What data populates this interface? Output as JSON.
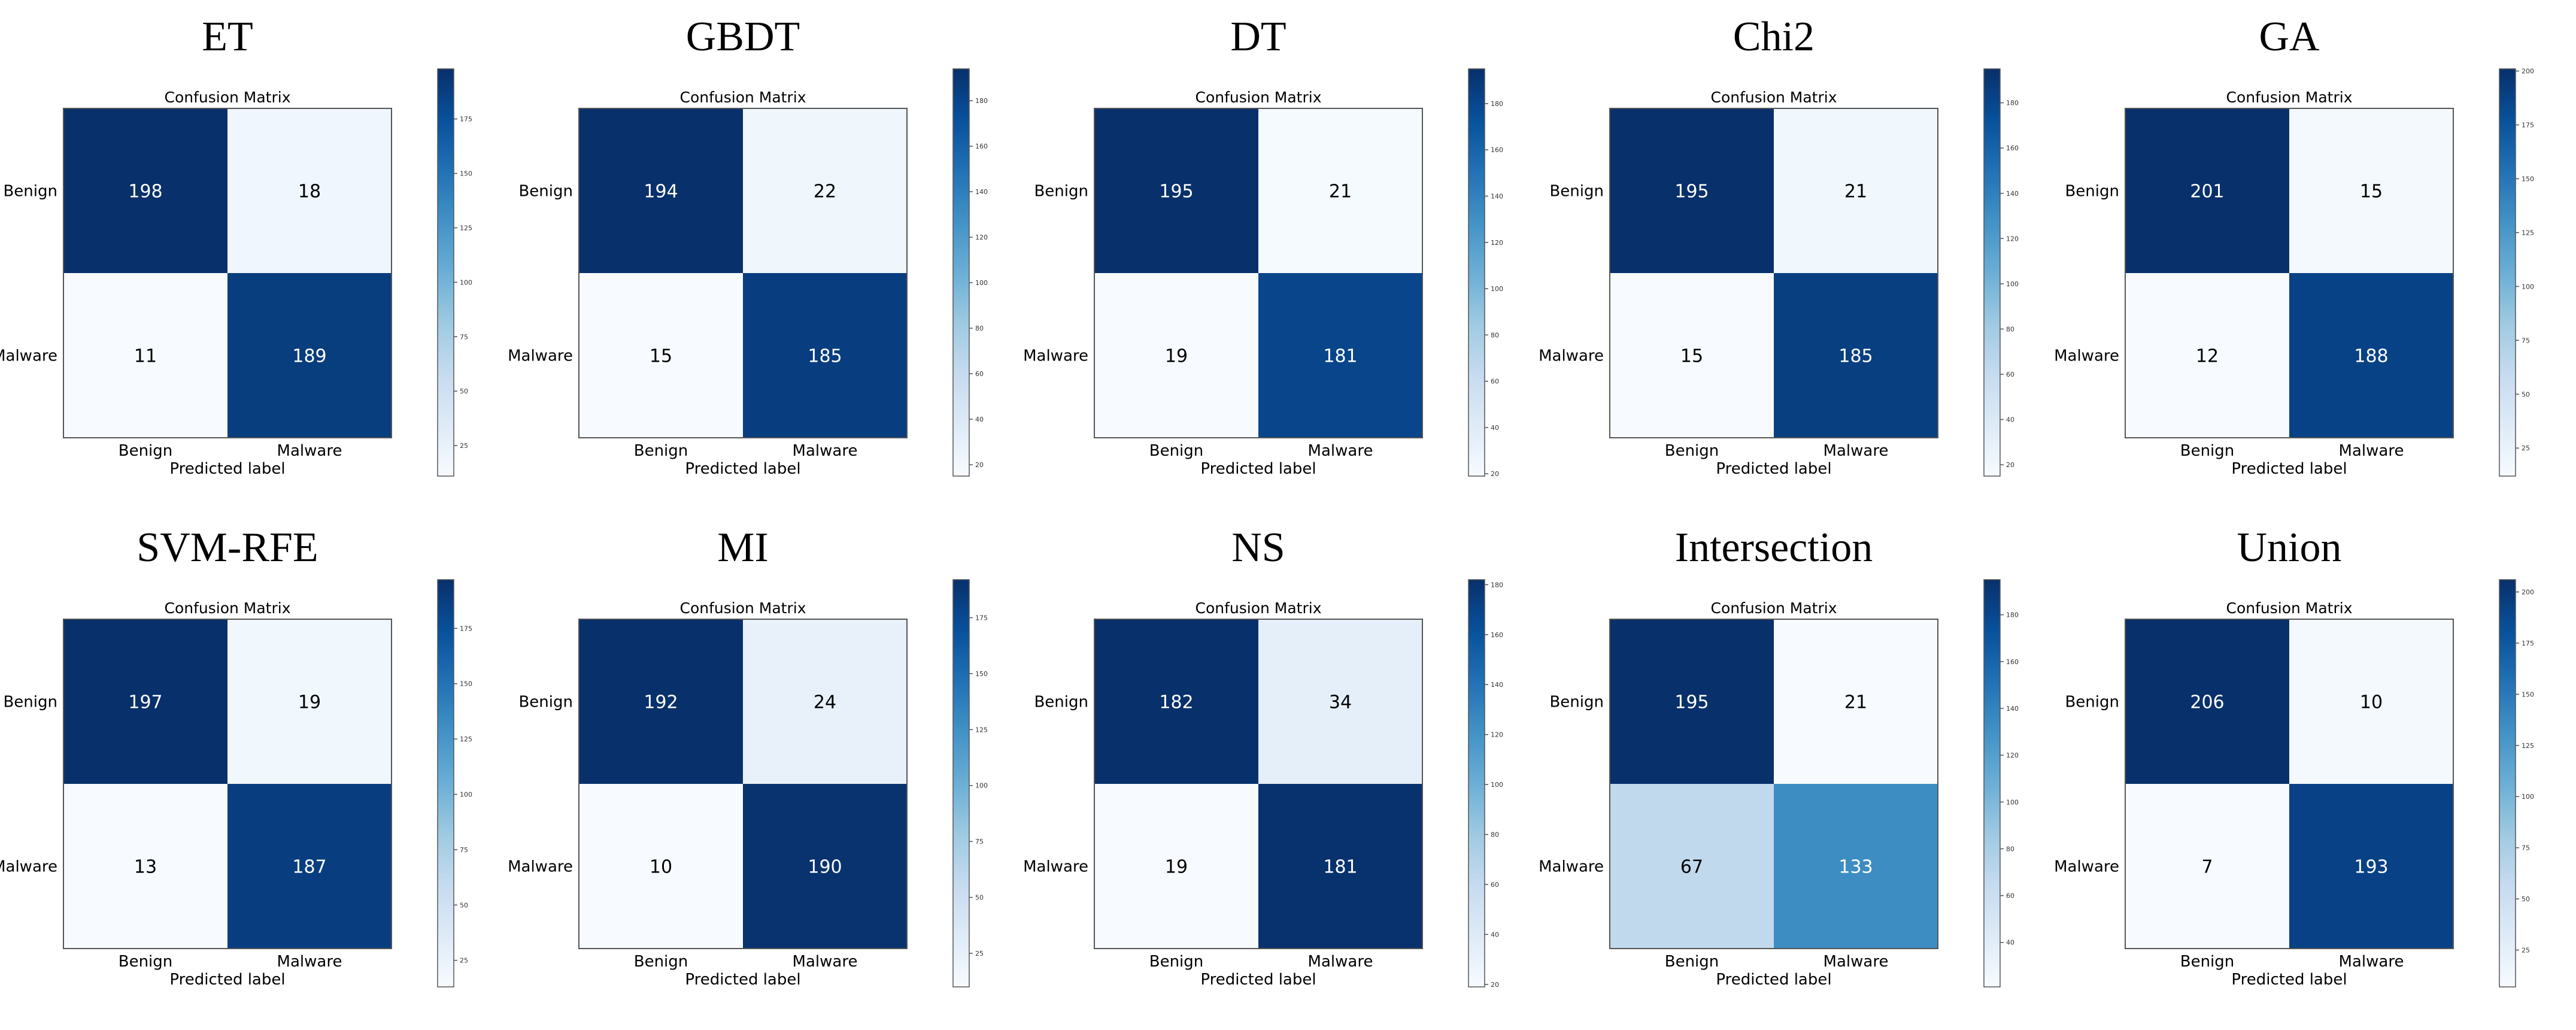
{
  "chart_data": [
    {
      "type": "heatmap",
      "panel_title": "ET",
      "title": "Confusion Matrix",
      "xlabel": "Predicted label",
      "ylabel": "",
      "x_categories": [
        "Benign",
        "Malware"
      ],
      "y_categories": [
        "Benign",
        "Malware"
      ],
      "values": [
        [
          198,
          18
        ],
        [
          11,
          189
        ]
      ],
      "colorbar_ticks": [
        25,
        50,
        75,
        100,
        125,
        150,
        175
      ],
      "color_range": [
        11,
        198
      ]
    },
    {
      "type": "heatmap",
      "panel_title": "GBDT",
      "title": "Confusion Matrix",
      "xlabel": "Predicted label",
      "ylabel": "",
      "x_categories": [
        "Benign",
        "Malware"
      ],
      "y_categories": [
        "Benign",
        "Malware"
      ],
      "values": [
        [
          194,
          22
        ],
        [
          15,
          185
        ]
      ],
      "colorbar_ticks": [
        20,
        40,
        60,
        80,
        100,
        120,
        140,
        160,
        180
      ],
      "color_range": [
        15,
        194
      ]
    },
    {
      "type": "heatmap",
      "panel_title": "DT",
      "title": "Confusion Matrix",
      "xlabel": "Predicted label",
      "ylabel": "",
      "x_categories": [
        "Benign",
        "Malware"
      ],
      "y_categories": [
        "Benign",
        "Malware"
      ],
      "values": [
        [
          195,
          21
        ],
        [
          19,
          181
        ]
      ],
      "colorbar_ticks": [
        20,
        40,
        60,
        80,
        100,
        120,
        140,
        160,
        180
      ],
      "color_range": [
        19,
        195
      ]
    },
    {
      "type": "heatmap",
      "panel_title": "Chi2",
      "title": "Confusion Matrix",
      "xlabel": "Predicted label",
      "ylabel": "",
      "x_categories": [
        "Benign",
        "Malware"
      ],
      "y_categories": [
        "Benign",
        "Malware"
      ],
      "values": [
        [
          195,
          21
        ],
        [
          15,
          185
        ]
      ],
      "colorbar_ticks": [
        20,
        40,
        60,
        80,
        100,
        120,
        140,
        160,
        180
      ],
      "color_range": [
        15,
        195
      ]
    },
    {
      "type": "heatmap",
      "panel_title": "GA",
      "title": "Confusion Matrix",
      "xlabel": "Predicted label",
      "ylabel": "",
      "x_categories": [
        "Benign",
        "Malware"
      ],
      "y_categories": [
        "Benign",
        "Malware"
      ],
      "values": [
        [
          201,
          15
        ],
        [
          12,
          188
        ]
      ],
      "colorbar_ticks": [
        25,
        50,
        75,
        100,
        125,
        150,
        175,
        200
      ],
      "color_range": [
        12,
        201
      ]
    },
    {
      "type": "heatmap",
      "panel_title": "SVM-RFE",
      "title": "Confusion Matrix",
      "xlabel": "Predicted label",
      "ylabel": "",
      "x_categories": [
        "Benign",
        "Malware"
      ],
      "y_categories": [
        "Benign",
        "Malware"
      ],
      "values": [
        [
          197,
          19
        ],
        [
          13,
          187
        ]
      ],
      "colorbar_ticks": [
        25,
        50,
        75,
        100,
        125,
        150,
        175
      ],
      "color_range": [
        13,
        197
      ]
    },
    {
      "type": "heatmap",
      "panel_title": "MI",
      "title": "Confusion Matrix",
      "xlabel": "Predicted label",
      "ylabel": "",
      "x_categories": [
        "Benign",
        "Malware"
      ],
      "y_categories": [
        "Benign",
        "Malware"
      ],
      "values": [
        [
          192,
          24
        ],
        [
          10,
          190
        ]
      ],
      "colorbar_ticks": [
        25,
        50,
        75,
        100,
        125,
        150,
        175
      ],
      "color_range": [
        10,
        192
      ]
    },
    {
      "type": "heatmap",
      "panel_title": "NS",
      "title": "Confusion Matrix",
      "xlabel": "Predicted label",
      "ylabel": "",
      "x_categories": [
        "Benign",
        "Malware"
      ],
      "y_categories": [
        "Benign",
        "Malware"
      ],
      "values": [
        [
          182,
          34
        ],
        [
          19,
          181
        ]
      ],
      "colorbar_ticks": [
        20,
        40,
        60,
        80,
        100,
        120,
        140,
        160,
        180
      ],
      "color_range": [
        19,
        182
      ]
    },
    {
      "type": "heatmap",
      "panel_title": "Intersection",
      "title": "Confusion Matrix",
      "xlabel": "Predicted label",
      "ylabel": "",
      "x_categories": [
        "Benign",
        "Malware"
      ],
      "y_categories": [
        "Benign",
        "Malware"
      ],
      "values": [
        [
          195,
          21
        ],
        [
          67,
          133
        ]
      ],
      "colorbar_ticks": [
        40,
        60,
        80,
        100,
        120,
        140,
        160,
        180
      ],
      "color_range": [
        21,
        195
      ]
    },
    {
      "type": "heatmap",
      "panel_title": "Union",
      "title": "Confusion Matrix",
      "xlabel": "Predicted label",
      "ylabel": "",
      "x_categories": [
        "Benign",
        "Malware"
      ],
      "y_categories": [
        "Benign",
        "Malware"
      ],
      "values": [
        [
          206,
          10
        ],
        [
          7,
          193
        ]
      ],
      "colorbar_ticks": [
        25,
        50,
        75,
        100,
        125,
        150,
        175,
        200
      ],
      "color_range": [
        7,
        206
      ]
    }
  ],
  "colors": {
    "light": "#f7fbff",
    "dark": "#08306b",
    "frame": "#555555",
    "text_dark": "#000000",
    "text_light": "#ffffff"
  }
}
